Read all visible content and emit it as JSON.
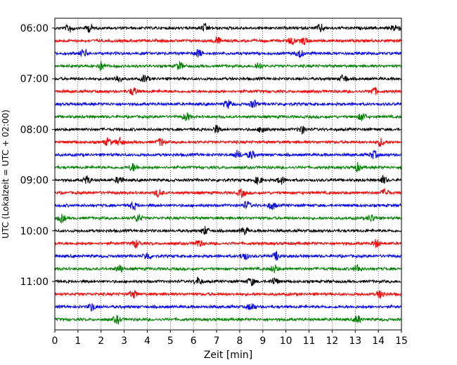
{
  "chart_data": {
    "type": "line",
    "title": "",
    "xlabel": "Zeit  [min]",
    "ylabel": "UTC (Lokalzeit = UTC + 02:00)",
    "xlim": [
      0,
      15
    ],
    "x_ticks": [
      "0",
      "1",
      "2",
      "3",
      "4",
      "5",
      "6",
      "7",
      "8",
      "9",
      "10",
      "11",
      "12",
      "13",
      "14",
      "15"
    ],
    "y_ticks": [
      "06:00",
      "07:00",
      "08:00",
      "09:00",
      "10:00",
      "11:00"
    ],
    "grid": "vertical dotted",
    "colors": [
      "#000000",
      "#ff0000",
      "#0000ff",
      "#008000"
    ],
    "traces": [
      {
        "start": "06:00",
        "color": "#000000",
        "events": [
          0.65,
          1.5,
          6.5,
          11.5,
          14.75
        ]
      },
      {
        "start": "06:15",
        "color": "#ff0000",
        "events": [
          7.0,
          10.25,
          10.8
        ]
      },
      {
        "start": "06:30",
        "color": "#0000ff",
        "events": [
          1.25,
          6.2,
          10.6
        ]
      },
      {
        "start": "06:45",
        "color": "#008000",
        "events": [
          2.0,
          5.4,
          8.8
        ]
      },
      {
        "start": "07:00",
        "color": "#000000",
        "events": [
          2.75,
          3.9,
          12.5
        ]
      },
      {
        "start": "07:15",
        "color": "#ff0000",
        "events": [
          3.4,
          13.8
        ]
      },
      {
        "start": "07:30",
        "color": "#0000ff",
        "events": [
          7.5,
          8.6
        ]
      },
      {
        "start": "07:45",
        "color": "#008000",
        "events": [
          5.7,
          13.3
        ]
      },
      {
        "start": "08:00",
        "color": "#000000",
        "events": [
          7.0,
          9.0,
          10.7
        ]
      },
      {
        "start": "08:15",
        "color": "#ff0000",
        "events": [
          2.3,
          2.8,
          4.6,
          14.1
        ]
      },
      {
        "start": "08:30",
        "color": "#0000ff",
        "events": [
          7.9,
          8.5,
          13.8
        ]
      },
      {
        "start": "08:45",
        "color": "#008000",
        "events": [
          3.4,
          13.1
        ]
      },
      {
        "start": "09:00",
        "color": "#000000",
        "events": [
          1.4,
          2.8,
          8.8,
          9.8,
          14.2
        ]
      },
      {
        "start": "09:15",
        "color": "#ff0000",
        "events": [
          4.5,
          8.1,
          14.3
        ]
      },
      {
        "start": "09:30",
        "color": "#0000ff",
        "events": [
          3.4,
          8.3,
          9.4
        ]
      },
      {
        "start": "09:45",
        "color": "#008000",
        "events": [
          0.3,
          3.6,
          13.7
        ]
      },
      {
        "start": "10:00",
        "color": "#000000",
        "events": [
          6.5,
          8.2
        ]
      },
      {
        "start": "10:15",
        "color": "#ff0000",
        "events": [
          3.5,
          6.2,
          13.9
        ]
      },
      {
        "start": "10:30",
        "color": "#0000ff",
        "events": [
          4.0,
          8.2,
          9.6
        ]
      },
      {
        "start": "10:45",
        "color": "#008000",
        "events": [
          2.8,
          9.5,
          13.1
        ]
      },
      {
        "start": "11:00",
        "color": "#000000",
        "events": [
          6.2,
          8.5,
          9.5
        ]
      },
      {
        "start": "11:15",
        "color": "#ff0000",
        "events": [
          3.4,
          14.1
        ]
      },
      {
        "start": "11:30",
        "color": "#0000ff",
        "events": [
          1.6,
          8.5
        ]
      },
      {
        "start": "11:45",
        "color": "#008000",
        "events": [
          2.7,
          13.1
        ]
      }
    ]
  }
}
